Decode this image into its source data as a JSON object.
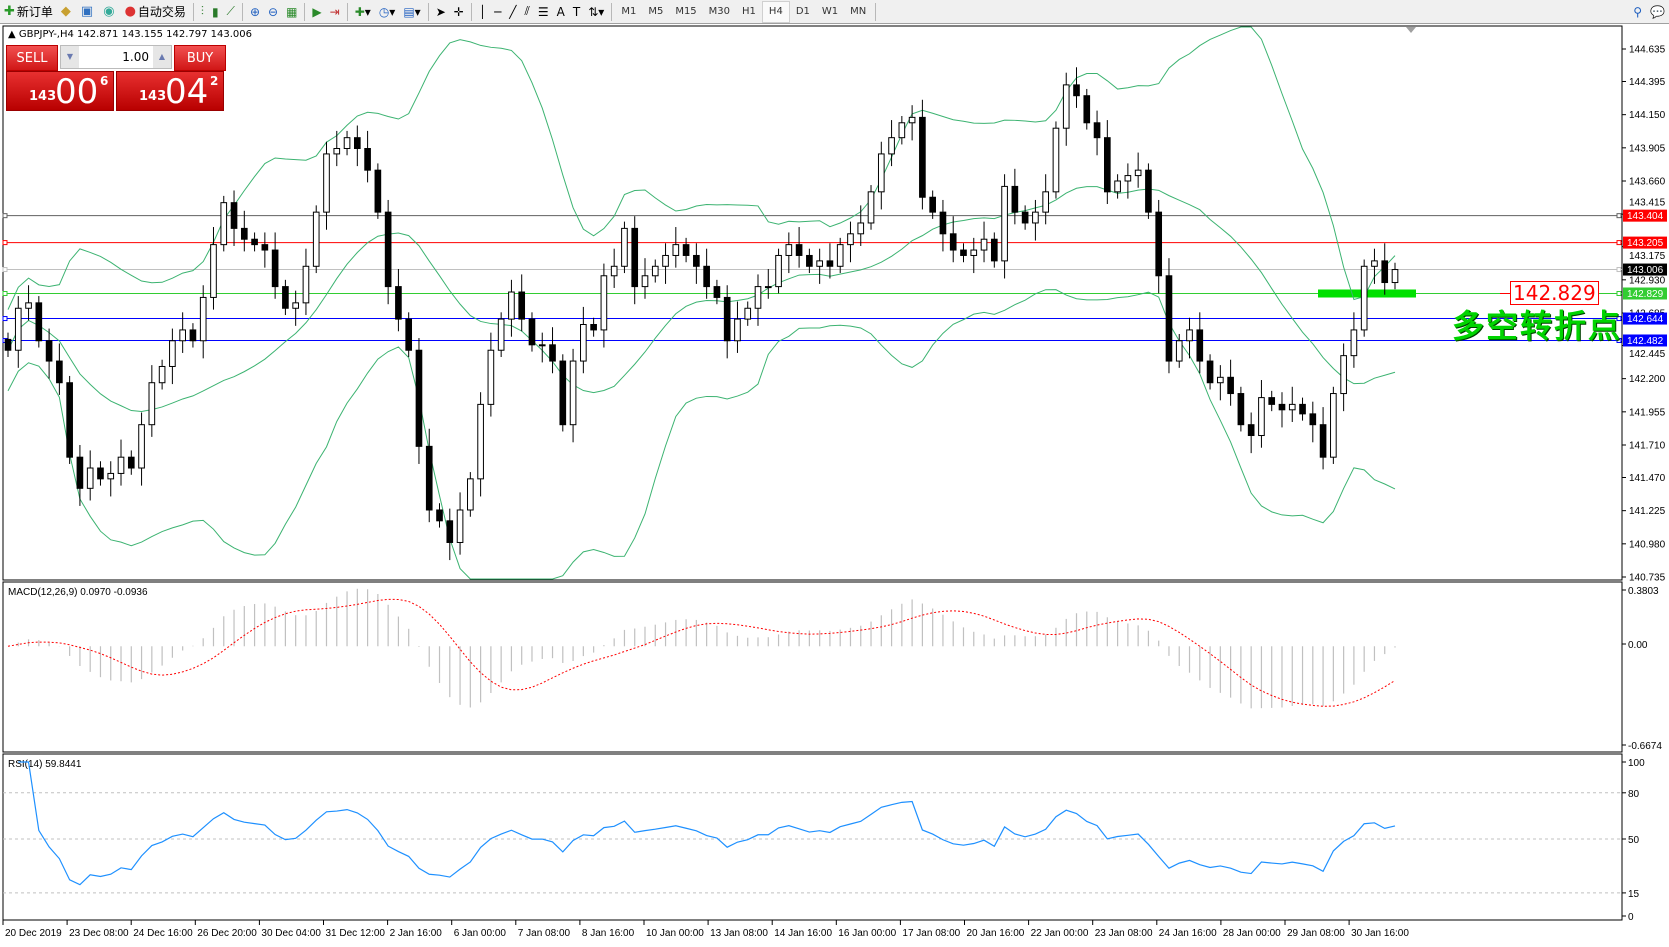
{
  "toolbar": {
    "new_order": "新订单",
    "auto_trading": "自动交易",
    "timeframes": [
      "M1",
      "M5",
      "M15",
      "M30",
      "H1",
      "H4",
      "D1",
      "W1",
      "MN"
    ],
    "active_timeframe": "H4"
  },
  "chart_header": "GBPJPY-,H4  142.871 143.155 142.797 143.006",
  "one_click": {
    "sell_label": "SELL",
    "buy_label": "BUY",
    "lot": "1.00",
    "sell_small": "143",
    "sell_big": "00",
    "sell_pip": "6",
    "buy_small": "143",
    "buy_big": "04",
    "buy_pip": "2"
  },
  "annotation": {
    "price": "142.829",
    "text": "多空转折点"
  },
  "price_axis": [
    "144.635",
    "144.395",
    "144.150",
    "143.905",
    "143.660",
    "143.415",
    "143.175",
    "142.930",
    "142.685",
    "142.445",
    "142.200",
    "141.955",
    "141.710",
    "141.470",
    "141.225",
    "140.980",
    "140.735"
  ],
  "hlines": [
    {
      "value": "143.404",
      "color": "#ff0000",
      "line": "#606060"
    },
    {
      "value": "143.205",
      "color": "#ff0000",
      "line": "#ff0000"
    },
    {
      "value": "143.006",
      "color": "#000000",
      "line": "#c0c0c0"
    },
    {
      "value": "142.829",
      "color": "#32cd32",
      "line": "#32cd32"
    },
    {
      "value": "142.644",
      "color": "#0000ff",
      "line": "#0000ff"
    },
    {
      "value": "142.482",
      "color": "#0000ff",
      "line": "#0000ff"
    }
  ],
  "macd": {
    "label": "MACD(12,26,9) 0.0970 -0.0936",
    "axis": [
      "0.3803",
      "0.00",
      "-0.6674"
    ]
  },
  "rsi": {
    "label": "RSI(14) 59.8441",
    "axis": [
      "100",
      "80",
      "50",
      "15",
      "0"
    ]
  },
  "time_axis": [
    "20 Dec 2019",
    "23 Dec 08:00",
    "24 Dec 16:00",
    "26 Dec 20:00",
    "30 Dec 04:00",
    "31 Dec 12:00",
    "2 Jan 16:00",
    "6 Jan 00:00",
    "7 Jan 08:00",
    "8 Jan 16:00",
    "10 Jan 00:00",
    "13 Jan 08:00",
    "14 Jan 16:00",
    "16 Jan 00:00",
    "17 Jan 08:00",
    "20 Jan 16:00",
    "22 Jan 00:00",
    "23 Jan 08:00",
    "24 Jan 16:00",
    "28 Jan 00:00",
    "29 Jan 08:00",
    "30 Jan 16:00"
  ],
  "chart_data": {
    "type": "candlestick",
    "symbol": "GBPJPY-",
    "timeframe": "H4",
    "ylim": [
      140.735,
      144.635
    ],
    "closes": [
      142.41,
      142.72,
      142.76,
      142.48,
      142.33,
      142.17,
      141.62,
      141.39,
      141.54,
      141.46,
      141.5,
      141.62,
      141.54,
      141.86,
      142.17,
      142.29,
      142.48,
      142.56,
      142.48,
      142.8,
      143.19,
      143.5,
      143.31,
      143.23,
      143.19,
      143.15,
      142.88,
      142.72,
      142.76,
      143.03,
      143.43,
      143.86,
      143.9,
      143.98,
      143.9,
      143.74,
      143.43,
      142.88,
      142.64,
      142.41,
      141.7,
      141.23,
      141.15,
      140.99,
      141.23,
      141.46,
      142.01,
      142.41,
      142.64,
      142.84,
      142.64,
      142.45,
      142.45,
      142.33,
      141.86,
      142.33,
      142.6,
      142.56,
      142.96,
      143.03,
      143.31,
      142.88,
      142.96,
      143.03,
      143.11,
      143.19,
      143.11,
      143.03,
      142.88,
      142.8,
      142.48,
      142.64,
      142.72,
      142.88,
      142.88,
      143.11,
      143.19,
      143.11,
      143.03,
      143.07,
      143.03,
      143.19,
      143.27,
      143.35,
      143.58,
      143.86,
      143.98,
      144.09,
      144.13,
      143.54,
      143.43,
      143.27,
      143.15,
      143.11,
      143.15,
      143.23,
      143.07,
      143.62,
      143.43,
      143.35,
      143.43,
      143.58,
      144.05,
      144.37,
      144.29,
      144.09,
      143.98,
      143.58,
      143.66,
      143.7,
      143.74,
      143.43,
      142.96,
      142.33,
      142.48,
      142.56,
      142.33,
      142.17,
      142.21,
      142.09,
      141.86,
      141.78,
      142.06,
      142.01,
      141.97,
      142.01,
      141.94,
      141.86,
      141.62,
      142.09,
      142.37,
      142.56,
      143.03,
      143.07,
      142.91,
      143.006
    ],
    "indicators": [
      "Bollinger Bands",
      "MACD(12,26,9)",
      "RSI(14)"
    ]
  }
}
